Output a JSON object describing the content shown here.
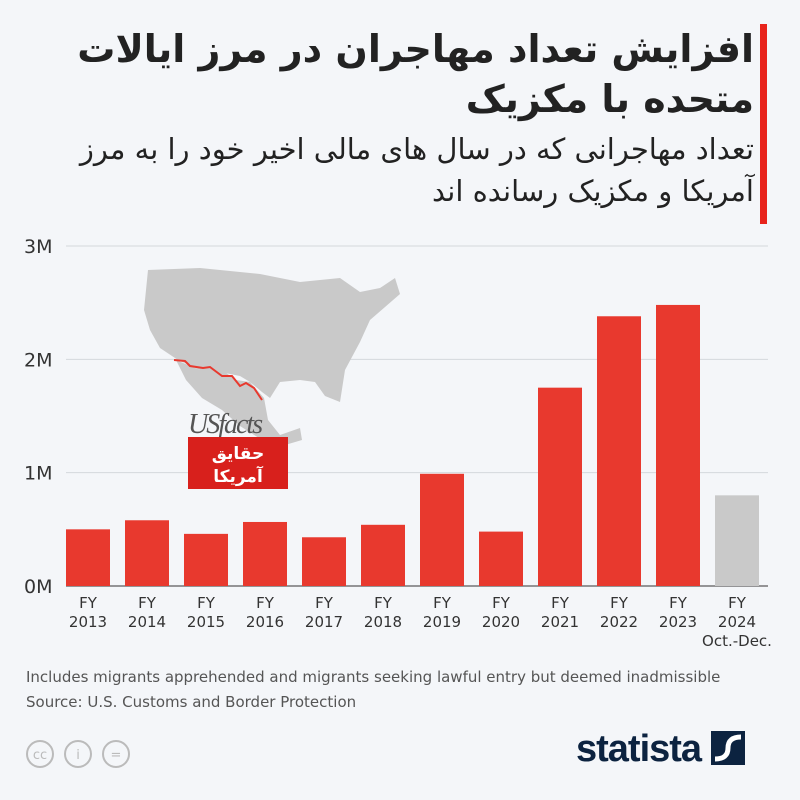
{
  "header": {
    "title": "افزایش تعداد مهاجران در مرز ایالات متحده با مکزیک",
    "subtitle": "تعداد مهاجرانی که در سال های مالی اخیر خود را به مرز آمریکا و مکزیک رسانده اند"
  },
  "chart_data": {
    "type": "bar",
    "title": "افزایش تعداد مهاجران در مرز ایالات متحده با مکزیک",
    "subtitle": "تعداد مهاجرانی که در سال های مالی اخیر خود را به مرز آمریکا و مکزیک رسانده اند",
    "categories": [
      [
        "FY",
        "2013"
      ],
      [
        "FY",
        "2014"
      ],
      [
        "FY",
        "2015"
      ],
      [
        "FY",
        "2016"
      ],
      [
        "FY",
        "2017"
      ],
      [
        "FY",
        "2018"
      ],
      [
        "FY",
        "2019"
      ],
      [
        "FY",
        "2020"
      ],
      [
        "FY",
        "2021"
      ],
      [
        "FY",
        "2022"
      ],
      [
        "FY",
        "2023"
      ],
      [
        "FY",
        "2024",
        "Oct.-Dec."
      ]
    ],
    "values": [
      500000,
      580000,
      460000,
      565000,
      430000,
      540000,
      990000,
      480000,
      1750000,
      2380000,
      2480000,
      800000
    ],
    "colors": [
      "#e8392e",
      "#e8392e",
      "#e8392e",
      "#e8392e",
      "#e8392e",
      "#e8392e",
      "#e8392e",
      "#e8392e",
      "#e8392e",
      "#e8392e",
      "#e8392e",
      "#c9c9c9"
    ],
    "yticks": [
      {
        "v": 0,
        "label": "0M"
      },
      {
        "v": 1000000,
        "label": "1M"
      },
      {
        "v": 2000000,
        "label": "2M"
      },
      {
        "v": 3000000,
        "label": "3M"
      }
    ],
    "ylim": [
      0,
      3000000
    ],
    "grid": true
  },
  "logos": {
    "usfacts": "USfacts",
    "usfacts_fa_1": "حقایق",
    "usfacts_fa_2": "آمریکا",
    "statista": "statista"
  },
  "footer": {
    "note": "Includes migrants apprehended and migrants seeking lawful entry but deemed inadmissible",
    "source": "Source: U.S. Customs and Border Protection"
  },
  "license_icons": [
    "cc-icon",
    "attribution-icon",
    "no-derivatives-icon"
  ]
}
